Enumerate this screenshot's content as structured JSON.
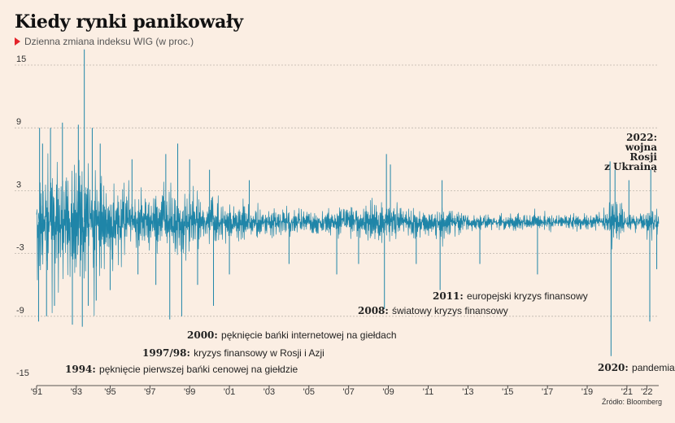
{
  "header": {
    "title": "Kiedy rynki panikowały",
    "subtitle": "Dzienna zmiana indeksu WIG (w proc.)"
  },
  "source": "Źródło: Bloomberg",
  "colors": {
    "series": "#1f85a8",
    "accent": "#e3232a",
    "background": "#fbeee3"
  },
  "chart_data": {
    "type": "line",
    "title": "Kiedy rynki panikowały",
    "subtitle": "Dzienna zmiana indeksu WIG (w proc.)",
    "xlabel": "",
    "ylabel": "",
    "ylim": [
      -15,
      15
    ],
    "yticks": [
      15,
      9,
      3,
      -3,
      -9,
      -15
    ],
    "xlim": [
      1991.3,
      2022.6
    ],
    "xticks": [
      {
        "x": 1991.3,
        "label": "'91"
      },
      {
        "x": 1993.3,
        "label": "'93"
      },
      {
        "x": 1995,
        "label": "'95"
      },
      {
        "x": 1997,
        "label": "'97"
      },
      {
        "x": 1999,
        "label": "'99"
      },
      {
        "x": 2001,
        "label": "'01"
      },
      {
        "x": 2003,
        "label": "'03"
      },
      {
        "x": 2005,
        "label": "'05"
      },
      {
        "x": 2007,
        "label": "'07"
      },
      {
        "x": 2009,
        "label": "'09"
      },
      {
        "x": 2011,
        "label": "'11"
      },
      {
        "x": 2013,
        "label": "'13"
      },
      {
        "x": 2015,
        "label": "'15"
      },
      {
        "x": 2017,
        "label": "'17"
      },
      {
        "x": 2019,
        "label": "'19"
      },
      {
        "x": 2021,
        "label": "'21"
      },
      {
        "x": 2022,
        "label": "'22"
      }
    ],
    "grid": true,
    "legend": "none",
    "series": [
      {
        "name": "",
        "envelope": [
          [
            1991.3,
            9.0
          ],
          [
            1991.8,
            8.5
          ],
          [
            1992.3,
            9.5
          ],
          [
            1992.8,
            7.5
          ],
          [
            1993.0,
            9.2
          ],
          [
            1993.5,
            8.0
          ],
          [
            1994.0,
            8.5
          ],
          [
            1994.5,
            6.5
          ],
          [
            1995.0,
            5.0
          ],
          [
            1995.5,
            4.5
          ],
          [
            1996.0,
            4.0
          ],
          [
            1996.5,
            3.5
          ],
          [
            1997.0,
            3.5
          ],
          [
            1997.5,
            3.5
          ],
          [
            1998.0,
            5.0
          ],
          [
            1998.5,
            4.5
          ],
          [
            1999.0,
            4.0
          ],
          [
            1999.5,
            3.5
          ],
          [
            2000.0,
            3.2
          ],
          [
            2000.5,
            3.0
          ],
          [
            2001.0,
            2.8
          ],
          [
            2002.0,
            2.3
          ],
          [
            2003.0,
            2.0
          ],
          [
            2004.0,
            1.8
          ],
          [
            2005.0,
            1.6
          ],
          [
            2006.0,
            1.8
          ],
          [
            2007.0,
            2.0
          ],
          [
            2007.5,
            2.2
          ],
          [
            2008.0,
            2.8
          ],
          [
            2008.5,
            3.2
          ],
          [
            2009.0,
            3.0
          ],
          [
            2009.5,
            2.4
          ],
          [
            2010.0,
            1.6
          ],
          [
            2011.0,
            1.6
          ],
          [
            2011.5,
            2.5
          ],
          [
            2012.0,
            2.0
          ],
          [
            2013.0,
            1.3
          ],
          [
            2014.0,
            1.1
          ],
          [
            2015.0,
            1.1
          ],
          [
            2016.0,
            1.3
          ],
          [
            2017.0,
            1.0
          ],
          [
            2018.0,
            1.2
          ],
          [
            2019.0,
            1.0
          ],
          [
            2019.8,
            1.0
          ],
          [
            2020.2,
            3.2
          ],
          [
            2020.6,
            2.2
          ],
          [
            2021.0,
            1.6
          ],
          [
            2021.6,
            1.4
          ],
          [
            2022.0,
            2.2
          ],
          [
            2022.6,
            2.0
          ]
        ],
        "spikes": [
          [
            1991.4,
            -9.5
          ],
          [
            1991.45,
            9.0
          ],
          [
            1991.6,
            7.5
          ],
          [
            1991.8,
            -9.0
          ],
          [
            1992.0,
            9.0
          ],
          [
            1992.2,
            -8.0
          ],
          [
            1992.6,
            9.5
          ],
          [
            1993.1,
            -9.8
          ],
          [
            1993.4,
            9.3
          ],
          [
            1993.6,
            -10.0
          ],
          [
            1993.7,
            16.5
          ],
          [
            1993.9,
            -8.0
          ],
          [
            1994.1,
            9.0
          ],
          [
            1994.3,
            -7.5
          ],
          [
            1994.5,
            7.5
          ],
          [
            1995.0,
            -6.5
          ],
          [
            1996.1,
            6.0
          ],
          [
            1996.4,
            -5.0
          ],
          [
            1997.3,
            -6.0
          ],
          [
            1997.8,
            6.5
          ],
          [
            1998.0,
            -9.3
          ],
          [
            1998.4,
            7.5
          ],
          [
            1998.6,
            -9.0
          ],
          [
            1999.0,
            6.0
          ],
          [
            1999.4,
            -6.0
          ],
          [
            2000.0,
            5.0
          ],
          [
            2000.2,
            -8.0
          ],
          [
            2001.0,
            -5.0
          ],
          [
            2002.0,
            4.0
          ],
          [
            2004.0,
            -4.0
          ],
          [
            2006.4,
            -5.0
          ],
          [
            2007.5,
            -4.0
          ],
          [
            2008.8,
            -8.3
          ],
          [
            2008.9,
            6.5
          ],
          [
            2009.1,
            5.5
          ],
          [
            2010.4,
            -4.0
          ],
          [
            2011.6,
            -6.5
          ],
          [
            2011.7,
            4.0
          ],
          [
            2013.6,
            -4.0
          ],
          [
            2016.5,
            -5.0
          ],
          [
            2020.2,
            -12.8
          ],
          [
            2020.15,
            5.8
          ],
          [
            2020.4,
            5.0
          ],
          [
            2021.1,
            4.0
          ],
          [
            2022.15,
            -9.5
          ],
          [
            2022.2,
            5.0
          ],
          [
            2022.5,
            -4.5
          ]
        ]
      }
    ],
    "annotations": [
      {
        "year": "2022:",
        "lines": [
          "wojna",
          "Rosji",
          "z Ukrainą"
        ]
      },
      {
        "year": "2011:",
        "text": "europejski kryzys finansowy"
      },
      {
        "year": "2008:",
        "text": "światowy kryzys finansowy"
      },
      {
        "year": "2000:",
        "text": "pęknięcie bańki internetowej na giełdach"
      },
      {
        "year": "1997/98:",
        "text": "kryzys finansowy w Rosji i Azji"
      },
      {
        "year": "1994:",
        "text": "pęknięcie pierwszej bańki cenowej na giełdzie"
      },
      {
        "year": "2020:",
        "text": "pandemia"
      }
    ]
  }
}
